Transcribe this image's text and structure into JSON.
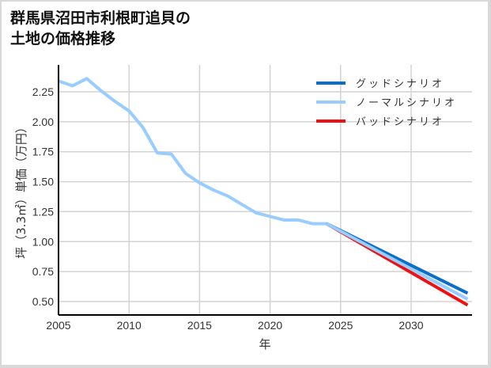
{
  "title": {
    "line1": "群馬県沼田市利根町追貝の",
    "line2": "土地の価格推移"
  },
  "chart_data": {
    "type": "line",
    "title": "群馬県沼田市利根町追貝の土地の価格推移",
    "xlabel": "年",
    "ylabel": "坪（3.3㎡）単価（万円）",
    "xlim": [
      2005,
      2034
    ],
    "ylim": [
      0.37,
      2.4
    ],
    "x_ticks": [
      2005,
      2010,
      2015,
      2020,
      2025,
      2030
    ],
    "y_ticks": [
      0.5,
      0.75,
      1.0,
      1.25,
      1.5,
      1.75,
      2.0,
      2.25
    ],
    "y_tick_labels": [
      "0.50",
      "0.75",
      "1.00",
      "1.25",
      "1.50",
      "1.75",
      "2.00",
      "2.25"
    ],
    "grid": true,
    "legend_position": "upper right",
    "series": [
      {
        "name": "グッドシナリオ",
        "color": "#0a6fc8",
        "x": [
          2024,
          2034
        ],
        "values": [
          1.15,
          0.57
        ]
      },
      {
        "name": "ノーマルシナリオ",
        "color": "#99ccff",
        "x": [
          2005,
          2006,
          2007,
          2008,
          2009,
          2010,
          2011,
          2012,
          2013,
          2014,
          2015,
          2016,
          2017,
          2018,
          2019,
          2020,
          2021,
          2022,
          2023,
          2024,
          2034
        ],
        "values": [
          2.34,
          2.3,
          2.36,
          2.26,
          2.17,
          2.09,
          1.95,
          1.74,
          1.73,
          1.57,
          1.49,
          1.43,
          1.38,
          1.31,
          1.24,
          1.21,
          1.18,
          1.18,
          1.15,
          1.15,
          0.52
        ]
      },
      {
        "name": "バッドシナリオ",
        "color": "#ee1111",
        "x": [
          2024,
          2034
        ],
        "values": [
          1.15,
          0.47
        ]
      }
    ]
  }
}
